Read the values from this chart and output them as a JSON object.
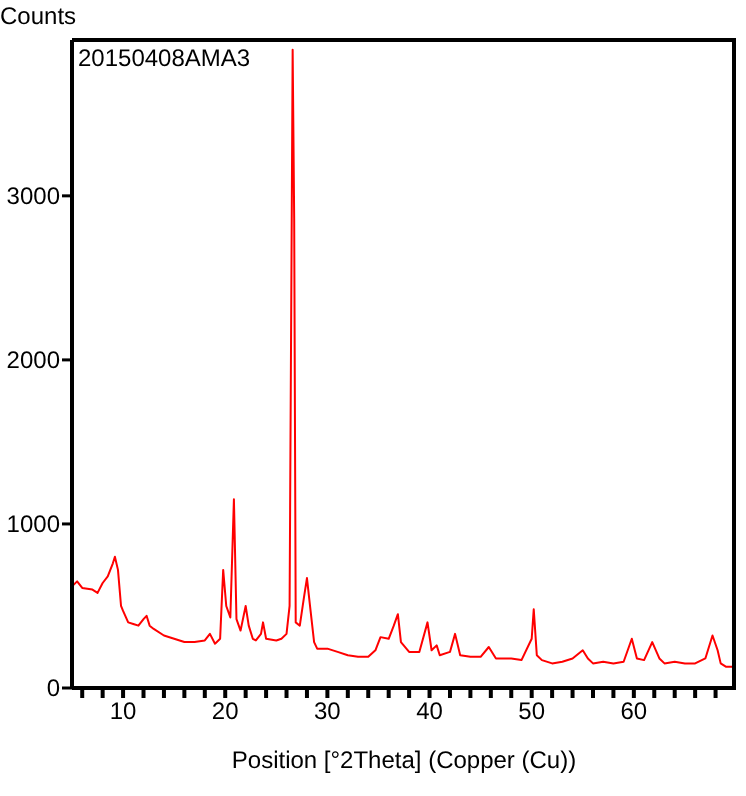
{
  "chart_data": {
    "type": "line",
    "xlabel": "Position [°2Theta] (Copper (Cu))",
    "ylabel": "Counts",
    "annotations": [
      "20150408AMA3"
    ],
    "xlim": [
      5,
      70
    ],
    "ylim": [
      0,
      3950
    ],
    "xticks": [
      {
        "value": 6,
        "label": null
      },
      {
        "value": 8,
        "label": null
      },
      10,
      {
        "value": 12,
        "label": null
      },
      {
        "value": 14,
        "label": null
      },
      {
        "value": 16,
        "label": null
      },
      {
        "value": 18,
        "label": null
      },
      20,
      {
        "value": 22,
        "label": null
      },
      {
        "value": 24,
        "label": null
      },
      {
        "value": 26,
        "label": null
      },
      {
        "value": 28,
        "label": null
      },
      30,
      {
        "value": 32,
        "label": null
      },
      {
        "value": 34,
        "label": null
      },
      {
        "value": 36,
        "label": null
      },
      {
        "value": 38,
        "label": null
      },
      40,
      {
        "value": 42,
        "label": null
      },
      {
        "value": 44,
        "label": null
      },
      {
        "value": 46,
        "label": null
      },
      {
        "value": 48,
        "label": null
      },
      50,
      {
        "value": 52,
        "label": null
      },
      {
        "value": 54,
        "label": null
      },
      {
        "value": 56,
        "label": null
      },
      {
        "value": 58,
        "label": null
      },
      60,
      {
        "value": 62,
        "label": null
      },
      {
        "value": 64,
        "label": null
      },
      {
        "value": 66,
        "label": null
      },
      {
        "value": 68,
        "label": null
      }
    ],
    "yticks": [
      0,
      1000,
      2000,
      3000
    ],
    "series": [
      {
        "color": "#ff0000",
        "x": [
          5,
          5.5,
          6,
          7,
          7.5,
          8,
          8.5,
          9,
          9.2,
          9.5,
          9.8,
          10,
          10.5,
          11,
          11.5,
          12,
          12.3,
          12.6,
          13,
          14,
          15,
          16,
          17,
          18,
          18.5,
          19,
          19.5,
          19.8,
          20.1,
          20.5,
          20.85,
          21.1,
          21.5,
          22,
          22.3,
          22.7,
          23,
          23.5,
          23.7,
          24,
          25,
          25.5,
          26,
          26.3,
          26.6,
          26.75,
          26.9,
          27.3,
          27.7,
          28,
          28.3,
          28.7,
          29,
          30,
          31,
          32,
          33,
          34,
          34.7,
          35.2,
          36,
          36.5,
          36.9,
          37.2,
          38,
          39,
          39.8,
          40.2,
          40.7,
          41,
          42,
          42.5,
          43,
          44,
          45,
          45.8,
          46.5,
          48,
          49,
          50,
          50.2,
          50.5,
          51,
          52,
          53,
          54,
          55,
          55.5,
          56,
          57,
          58,
          59,
          59.8,
          60.3,
          61,
          61.8,
          62.5,
          63,
          64,
          65,
          66,
          67,
          67.7,
          68.2,
          68.5,
          69,
          70
        ],
        "values": [
          620,
          650,
          610,
          600,
          580,
          640,
          680,
          760,
          800,
          720,
          500,
          470,
          400,
          390,
          380,
          420,
          440,
          380,
          360,
          320,
          300,
          280,
          280,
          290,
          330,
          270,
          300,
          720,
          500,
          430,
          1150,
          420,
          350,
          500,
          380,
          300,
          290,
          330,
          400,
          300,
          290,
          300,
          330,
          500,
          3890,
          2860,
          400,
          380,
          550,
          670,
          500,
          280,
          240,
          240,
          220,
          200,
          190,
          190,
          230,
          310,
          300,
          380,
          450,
          280,
          220,
          220,
          400,
          230,
          260,
          200,
          220,
          330,
          200,
          190,
          190,
          250,
          180,
          180,
          170,
          300,
          480,
          200,
          170,
          150,
          160,
          180,
          230,
          180,
          150,
          160,
          150,
          160,
          300,
          180,
          170,
          280,
          180,
          150,
          160,
          150,
          150,
          180,
          320,
          230,
          150,
          130,
          130
        ]
      }
    ]
  }
}
